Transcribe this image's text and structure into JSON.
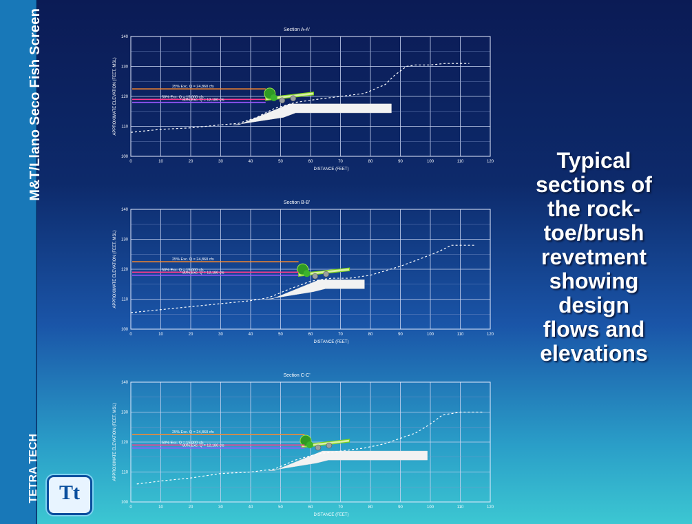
{
  "sidebar": {
    "title": "M&T/Llano Seco Fish Screen",
    "brand": "TETRA TECH",
    "logo_text": "Tt"
  },
  "caption": {
    "lines": [
      "Typical",
      "sections of",
      "the rock-",
      "toe/brush",
      "revetment",
      "showing",
      "design",
      "flows and",
      "elevations"
    ]
  },
  "chart_data": [
    {
      "type": "line",
      "title": "Section A-A'",
      "xlabel": "DISTANCE (FEET)",
      "ylabel": "APPROXIMATE ELEVATION (FEET, MSL)",
      "xlim": [
        0,
        120
      ],
      "ylim": [
        100,
        140
      ],
      "xticks": [
        0,
        10,
        20,
        30,
        40,
        50,
        60,
        70,
        80,
        90,
        100,
        110,
        120
      ],
      "yticks": [
        100,
        110,
        120,
        130,
        140
      ],
      "grid": true,
      "ground_profile": {
        "x": [
          0,
          10,
          20,
          30,
          36,
          42,
          48,
          55,
          62,
          70,
          78,
          85,
          88,
          92,
          95,
          100,
          105,
          113
        ],
        "y": [
          108,
          109,
          109.5,
          110.5,
          111,
          113,
          116,
          118,
          119,
          120,
          121,
          124,
          127,
          130,
          130.5,
          130.5,
          131,
          131
        ]
      },
      "flows": [
        {
          "label": "25% Exc. Q = 24,860 cfs",
          "elevation": 122.5,
          "color": "#ff8a2a",
          "x_end": 45
        },
        {
          "label": "50% Exc. Q = 15,000 cfs",
          "elevation": 119,
          "color": "#ff3a8a",
          "x_end": 45
        },
        {
          "label": "80% Exc. Q = 12,180 cfs",
          "elevation": 118,
          "color": "#9a55ff",
          "x_end": 45
        }
      ],
      "revetment": {
        "toe_x": 36,
        "toe_y": 111,
        "crest_x": 47,
        "crest_y": 119,
        "far_x": 87,
        "brush_x": [
          45,
          61
        ]
      }
    },
    {
      "type": "line",
      "title": "Section B-B'",
      "xlabel": "DISTANCE (FEET)",
      "ylabel": "APPROXIMATE ELEVATION (FEET, MSL)",
      "xlim": [
        0,
        120
      ],
      "ylim": [
        100,
        140
      ],
      "xticks": [
        0,
        10,
        20,
        30,
        40,
        50,
        60,
        70,
        80,
        90,
        100,
        110,
        120
      ],
      "yticks": [
        100,
        110,
        120,
        130,
        140
      ],
      "grid": true,
      "ground_profile": {
        "x": [
          0,
          10,
          20,
          30,
          40,
          46,
          52,
          60,
          67,
          73,
          80,
          90,
          98,
          103,
          107,
          112,
          115
        ],
        "y": [
          105.5,
          106.5,
          107.5,
          108.5,
          109.5,
          110.5,
          113,
          116,
          117,
          117,
          118,
          121,
          124,
          126,
          128,
          128,
          128
        ]
      },
      "flows": [
        {
          "label": "25% Exc. Q = 24,860 cfs",
          "elevation": 122.5,
          "color": "#ff8a2a",
          "x_end": 56
        },
        {
          "label": "50% Exc. Q = 15,000 cfs",
          "elevation": 119,
          "color": "#ff3a8a",
          "x_end": 56
        },
        {
          "label": "80% Exc. Q = 12,180 cfs",
          "elevation": 118,
          "color": "#9a55ff",
          "x_end": 56
        }
      ],
      "revetment": {
        "toe_x": 47,
        "toe_y": 110.5,
        "crest_x": 57,
        "crest_y": 118,
        "far_x": 78,
        "brush_x": [
          56,
          73
        ]
      }
    },
    {
      "type": "line",
      "title": "Section C-C'",
      "xlabel": "DISTANCE (FEET)",
      "ylabel": "APPROXIMATE ELEVATION (FEET, MSL)",
      "xlim": [
        0,
        120
      ],
      "ylim": [
        100,
        140
      ],
      "xticks": [
        0,
        10,
        20,
        30,
        40,
        50,
        60,
        70,
        80,
        90,
        100,
        110,
        120
      ],
      "yticks": [
        100,
        110,
        120,
        130,
        140
      ],
      "grid": true,
      "ground_profile": {
        "x": [
          2,
          10,
          20,
          30,
          40,
          48,
          55,
          62,
          70,
          78,
          85,
          95,
          100,
          104,
          110,
          118
        ],
        "y": [
          106,
          107,
          108,
          109.5,
          110,
          111,
          114,
          116,
          117,
          118,
          119.5,
          123,
          126,
          129,
          130,
          130
        ]
      },
      "flows": [
        {
          "label": "25% Exc. Q = 24,860 cfs",
          "elevation": 122.5,
          "color": "#ff8a2a",
          "x_end": 58
        },
        {
          "label": "50% Exc. Q = 15,000 cfs",
          "elevation": 119,
          "color": "#ff3a8a",
          "x_end": 58
        },
        {
          "label": "80% Exc. Q = 12,180 cfs",
          "elevation": 118,
          "color": "#9a55ff",
          "x_end": 58
        }
      ],
      "revetment": {
        "toe_x": 48,
        "toe_y": 111,
        "crest_x": 58,
        "crest_y": 118.5,
        "far_x": 99,
        "brush_x": [
          57,
          73
        ]
      }
    }
  ]
}
